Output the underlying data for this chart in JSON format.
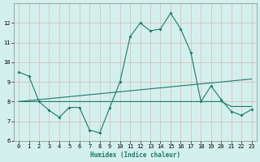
{
  "xlabel": "Humidex (Indice chaleur)",
  "x": [
    0,
    1,
    2,
    3,
    4,
    5,
    6,
    7,
    8,
    9,
    10,
    11,
    12,
    13,
    14,
    15,
    16,
    17,
    18,
    19,
    20,
    21,
    22,
    23
  ],
  "line1": [
    9.5,
    9.3,
    8.0,
    7.55,
    7.2,
    7.7,
    7.7,
    6.55,
    6.4,
    7.7,
    9.0,
    11.3,
    12.0,
    11.6,
    11.7,
    12.5,
    11.7,
    10.5,
    8.0,
    8.8,
    8.1,
    7.5,
    7.3,
    7.6
  ],
  "line2": [
    8.0,
    8.0,
    8.0,
    8.0,
    8.0,
    8.0,
    8.0,
    8.0,
    8.0,
    8.0,
    8.0,
    8.0,
    8.0,
    8.0,
    8.0,
    8.0,
    8.0,
    8.0,
    8.0,
    8.0,
    8.0,
    7.75,
    7.75,
    7.75
  ],
  "line3": [
    8.0,
    8.05,
    8.1,
    8.15,
    8.2,
    8.25,
    8.3,
    8.35,
    8.4,
    8.45,
    8.5,
    8.55,
    8.6,
    8.65,
    8.7,
    8.75,
    8.8,
    8.85,
    8.9,
    8.95,
    9.0,
    9.05,
    9.1,
    9.15
  ],
  "line_color": "#1a7a6e",
  "bg_color": "#d4f0ec",
  "grid_color": "#c0ddd9",
  "ylim": [
    6,
    13
  ],
  "yticks": [
    6,
    7,
    8,
    9,
    10,
    11,
    12
  ],
  "xticks": [
    0,
    1,
    2,
    3,
    4,
    5,
    6,
    7,
    8,
    9,
    10,
    11,
    12,
    13,
    14,
    15,
    16,
    17,
    18,
    19,
    20,
    21,
    22,
    23
  ]
}
